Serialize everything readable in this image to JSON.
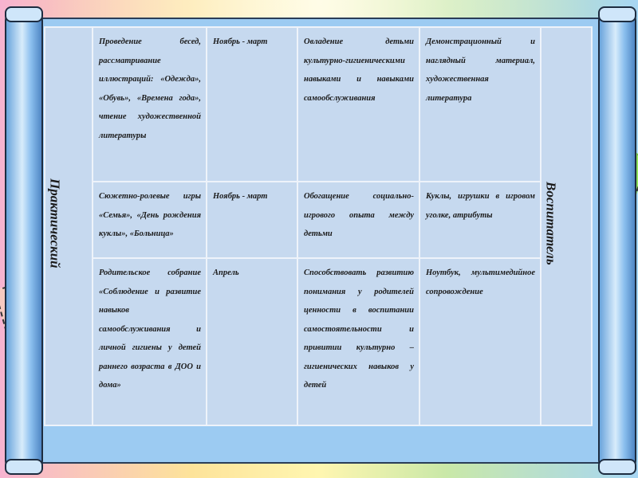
{
  "table": {
    "stage": "Практический",
    "responsible": "Воспитатель",
    "rows": [
      {
        "activity": "Проведение бесед, рассматривание иллюстраций: «Одежда», «Обувь», «Времена года», чтение художественной литературы",
        "period": "Ноябрь - март",
        "goal": "Овладение детьми культурно-гигиеническими навыками и навыками самообслуживания",
        "materials": "Демонстрационный и наглядный материал, художественная литература"
      },
      {
        "activity": "Сюжетно-ролевые игры «Семья», «День рождения куклы», «Больница»",
        "period": "Ноябрь - март",
        "goal": "Обогащение социально-игрового опыта между детьми",
        "materials": "Куклы, игрушки в игровом уголке, атрибуты"
      },
      {
        "activity": "Родительское собрание «Соблюдение и развитие навыков самообслуживания и личной гигиены у детей раннего возраста в ДОО и дома»",
        "period": "Апрель",
        "goal": "Способствовать развитию понимания у родителей ценности в воспитании самостоятельности и привитии культурно – гигиенических навыков у детей",
        "materials": "Ноутбук, мультимедийное сопровождение"
      }
    ]
  },
  "colors": {
    "cell": "#c6d9ef",
    "scroll": "#9ccbf2",
    "roller": "#8bbfee"
  }
}
